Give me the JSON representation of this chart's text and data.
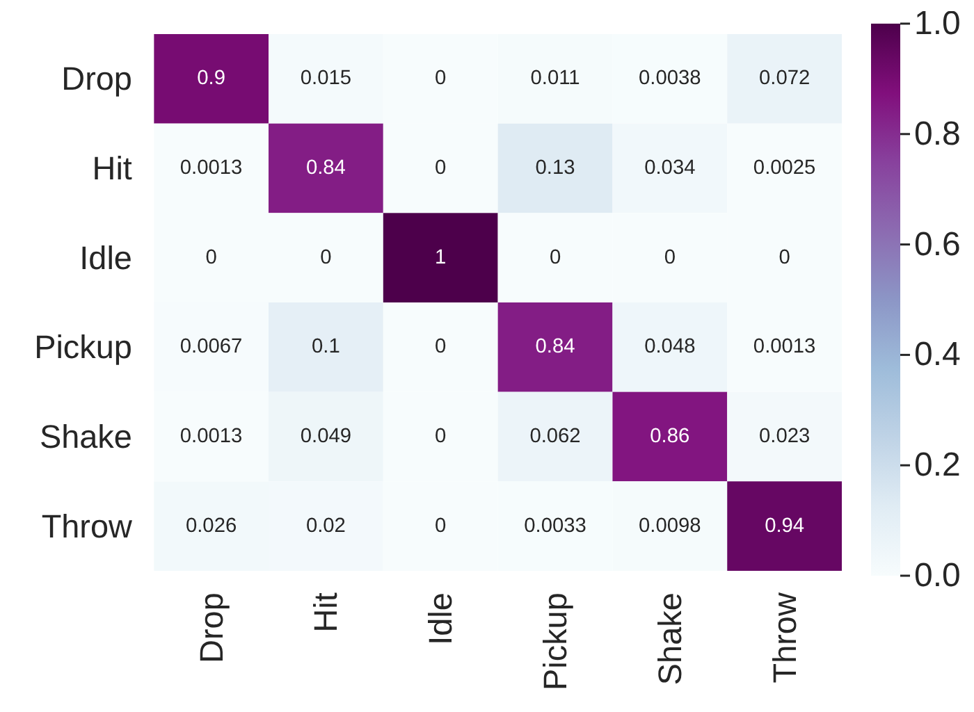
{
  "chart_data": {
    "type": "heatmap",
    "categories": [
      "Drop",
      "Hit",
      "Idle",
      "Pickup",
      "Shake",
      "Throw"
    ],
    "y_categories": [
      "Drop",
      "Hit",
      "Idle",
      "Pickup",
      "Shake",
      "Throw"
    ],
    "cells": [
      [
        0.9,
        0.015,
        0,
        0.011,
        0.0038,
        0.072
      ],
      [
        0.0013,
        0.84,
        0,
        0.13,
        0.034,
        0.0025
      ],
      [
        0,
        0,
        1,
        0,
        0,
        0
      ],
      [
        0.0067,
        0.1,
        0,
        0.84,
        0.048,
        0.0013
      ],
      [
        0.0013,
        0.049,
        0,
        0.062,
        0.86,
        0.023
      ],
      [
        0.026,
        0.02,
        0,
        0.0033,
        0.0098,
        0.94
      ]
    ],
    "data_labels": true,
    "clim": [
      0.0,
      1.0
    ],
    "cticks": [
      {
        "value": 0,
        "label": "0.0"
      },
      {
        "value": 0.2,
        "label": "0.2"
      },
      {
        "value": 0.4,
        "label": "0.4"
      },
      {
        "value": 0.6,
        "label": "0.6"
      },
      {
        "value": 0.8,
        "label": "0.8"
      },
      {
        "value": 1,
        "label": "1.0"
      }
    ]
  }
}
